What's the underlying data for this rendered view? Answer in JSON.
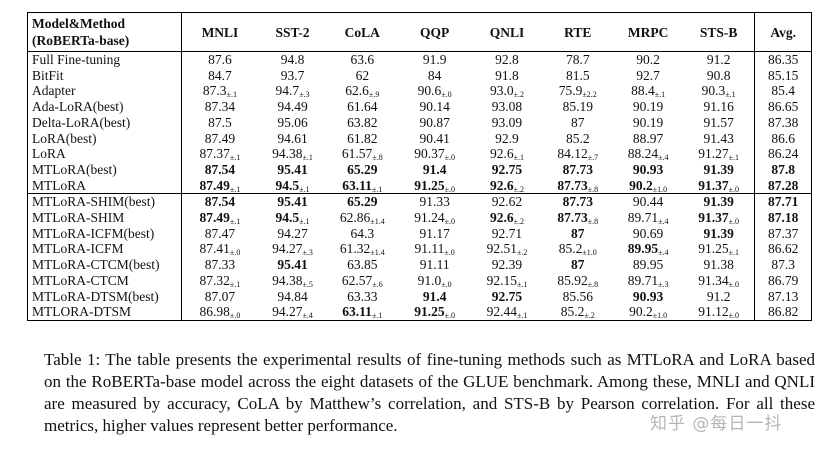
{
  "header": {
    "method_line1": "Model&Method",
    "method_line2": "(RoBERTa-base)",
    "columns": [
      "MNLI",
      "SST-2",
      "CoLA",
      "QQP",
      "QNLI",
      "RTE",
      "MRPC",
      "STS-B",
      "Avg."
    ]
  },
  "group1": [
    {
      "method": "Full Fine-tuning",
      "cells": [
        {
          "v": "87.6"
        },
        {
          "v": "94.8"
        },
        {
          "v": "63.6"
        },
        {
          "v": "91.9"
        },
        {
          "v": "92.8"
        },
        {
          "v": "78.7"
        },
        {
          "v": "90.2"
        },
        {
          "v": "91.2"
        },
        {
          "v": "86.35"
        }
      ]
    },
    {
      "method": "BitFit",
      "cells": [
        {
          "v": "84.7"
        },
        {
          "v": "93.7"
        },
        {
          "v": "62"
        },
        {
          "v": "84"
        },
        {
          "v": "91.8"
        },
        {
          "v": "81.5"
        },
        {
          "v": "92.7"
        },
        {
          "v": "90.8"
        },
        {
          "v": "85.15"
        }
      ]
    },
    {
      "method": "Adapter",
      "cells": [
        {
          "v": "87.3",
          "s": "±.1"
        },
        {
          "v": "94.7",
          "s": "±.3"
        },
        {
          "v": "62.6",
          "s": "±.9"
        },
        {
          "v": "90.6",
          "s": "±.0"
        },
        {
          "v": "93.0",
          "s": "±.2"
        },
        {
          "v": "75.9",
          "s": "±2.2"
        },
        {
          "v": "88.4",
          "s": "±.1"
        },
        {
          "v": "90.3",
          "s": "±.1"
        },
        {
          "v": "85.4"
        }
      ]
    },
    {
      "method": "Ada-LoRA(best)",
      "cells": [
        {
          "v": "87.34"
        },
        {
          "v": "94.49"
        },
        {
          "v": "61.64"
        },
        {
          "v": "90.14"
        },
        {
          "v": "93.08"
        },
        {
          "v": "85.19"
        },
        {
          "v": "90.19"
        },
        {
          "v": "91.16"
        },
        {
          "v": "86.65"
        }
      ]
    },
    {
      "method": "Delta-LoRA(best)",
      "cells": [
        {
          "v": "87.5"
        },
        {
          "v": "95.06"
        },
        {
          "v": "63.82"
        },
        {
          "v": "90.87"
        },
        {
          "v": "93.09"
        },
        {
          "v": "87"
        },
        {
          "v": "90.19"
        },
        {
          "v": "91.57"
        },
        {
          "v": "87.38"
        }
      ]
    },
    {
      "method": "LoRA(best)",
      "cells": [
        {
          "v": "87.49"
        },
        {
          "v": "94.61"
        },
        {
          "v": "61.82"
        },
        {
          "v": "90.41"
        },
        {
          "v": "92.9"
        },
        {
          "v": "85.2"
        },
        {
          "v": "88.97"
        },
        {
          "v": "91.43"
        },
        {
          "v": "86.6"
        }
      ]
    },
    {
      "method": "LoRA",
      "cells": [
        {
          "v": "87.37",
          "s": "±.1"
        },
        {
          "v": "94.38",
          "s": "±.1"
        },
        {
          "v": "61.57",
          "s": "±.8"
        },
        {
          "v": "90.37",
          "s": "±.0"
        },
        {
          "v": "92.6",
          "s": "±.1"
        },
        {
          "v": "84.12",
          "s": "±.7"
        },
        {
          "v": "88.24",
          "s": "±.4"
        },
        {
          "v": "91.27",
          "s": "±.1"
        },
        {
          "v": "86.24"
        }
      ]
    },
    {
      "method": "MTLoRA(best)",
      "cells": [
        {
          "v": "87.54",
          "b": true
        },
        {
          "v": "95.41",
          "b": true
        },
        {
          "v": "65.29",
          "b": true
        },
        {
          "v": "91.4",
          "b": true
        },
        {
          "v": "92.75",
          "b": true
        },
        {
          "v": "87.73",
          "b": true
        },
        {
          "v": "90.93",
          "b": true
        },
        {
          "v": "91.39",
          "b": true
        },
        {
          "v": "87.8",
          "b": true
        }
      ]
    },
    {
      "method": "MTLoRA",
      "cells": [
        {
          "v": "87.49",
          "s": "±.1",
          "b": true
        },
        {
          "v": "94.5",
          "s": "±.1",
          "b": true
        },
        {
          "v": "63.11",
          "s": "±.1",
          "b": true
        },
        {
          "v": "91.25",
          "s": "±.0",
          "b": true
        },
        {
          "v": "92.6",
          "s": "±.2",
          "b": true
        },
        {
          "v": "87.73",
          "s": "±.8",
          "b": true
        },
        {
          "v": "90.2",
          "s": "±1.0",
          "b": true
        },
        {
          "v": "91.37",
          "s": "±.0",
          "b": true
        },
        {
          "v": "87.28",
          "b": true
        }
      ]
    }
  ],
  "group2": [
    {
      "method": "MTLoRA-SHIM(best)",
      "cells": [
        {
          "v": "87.54",
          "b": true
        },
        {
          "v": "95.41",
          "b": true
        },
        {
          "v": "65.29",
          "b": true
        },
        {
          "v": "91.33"
        },
        {
          "v": "92.62"
        },
        {
          "v": "87.73",
          "b": true
        },
        {
          "v": "90.44"
        },
        {
          "v": "91.39",
          "b": true
        },
        {
          "v": "87.71",
          "b": true
        }
      ]
    },
    {
      "method": "MTLoRA-SHIM",
      "cells": [
        {
          "v": "87.49",
          "s": "±.1",
          "b": true
        },
        {
          "v": "94.5",
          "s": "±.1",
          "b": true
        },
        {
          "v": "62.86",
          "s": "±1.4"
        },
        {
          "v": "91.24",
          "s": "±.0"
        },
        {
          "v": "92.6",
          "s": "±.2",
          "b": true
        },
        {
          "v": "87.73",
          "s": "±.8",
          "b": true
        },
        {
          "v": "89.71",
          "s": "±.4"
        },
        {
          "v": "91.37",
          "s": "±.0",
          "b": true
        },
        {
          "v": "87.18",
          "b": true
        }
      ]
    },
    {
      "method": "MTLoRA-ICFM(best)",
      "cells": [
        {
          "v": "87.47"
        },
        {
          "v": "94.27"
        },
        {
          "v": "64.3"
        },
        {
          "v": "91.17"
        },
        {
          "v": "92.71"
        },
        {
          "v": "87",
          "b": true
        },
        {
          "v": "90.69"
        },
        {
          "v": "91.39",
          "b": true
        },
        {
          "v": "87.37"
        }
      ]
    },
    {
      "method": "MTLoRA-ICFM",
      "cells": [
        {
          "v": "87.41",
          "s": "±.0"
        },
        {
          "v": "94.27",
          "s": "±.3"
        },
        {
          "v": "61.32",
          "s": "±1.4"
        },
        {
          "v": "91.11",
          "s": "±.0"
        },
        {
          "v": "92.51",
          "s": "±.2"
        },
        {
          "v": "85.2",
          "s": "±1.0"
        },
        {
          "v": "89.95",
          "s": "±.4",
          "b": true
        },
        {
          "v": "91.25",
          "s": "±.1"
        },
        {
          "v": "86.62"
        }
      ]
    },
    {
      "method": "MTLoRA-CTCM(best)",
      "cells": [
        {
          "v": "87.33"
        },
        {
          "v": "95.41",
          "b": true
        },
        {
          "v": "63.85"
        },
        {
          "v": "91.11"
        },
        {
          "v": "92.39"
        },
        {
          "v": "87",
          "b": true
        },
        {
          "v": "89.95"
        },
        {
          "v": "91.38"
        },
        {
          "v": "87.3"
        }
      ]
    },
    {
      "method": "MTLoRA-CTCM",
      "cells": [
        {
          "v": "87.32",
          "s": "±.1"
        },
        {
          "v": "94.38",
          "s": "±.5"
        },
        {
          "v": "62.57",
          "s": "±.6"
        },
        {
          "v": "91.0",
          "s": "±.0"
        },
        {
          "v": "92.15",
          "s": "±.1"
        },
        {
          "v": "85.92",
          "s": "±.8"
        },
        {
          "v": "89.71",
          "s": "±.3"
        },
        {
          "v": "91.34",
          "s": "±.0"
        },
        {
          "v": "86.79"
        }
      ]
    },
    {
      "method": "MTLoRA-DTSM(best)",
      "cells": [
        {
          "v": "87.07"
        },
        {
          "v": "94.84"
        },
        {
          "v": "63.33"
        },
        {
          "v": "91.4",
          "b": true
        },
        {
          "v": "92.75",
          "b": true
        },
        {
          "v": "85.56"
        },
        {
          "v": "90.93",
          "b": true
        },
        {
          "v": "91.2"
        },
        {
          "v": "87.13"
        }
      ]
    },
    {
      "method": "MTLORA-DTSM",
      "cells": [
        {
          "v": "86.98",
          "s": "±.0"
        },
        {
          "v": "94.27",
          "s": "±.4"
        },
        {
          "v": "63.11",
          "s": "±.1",
          "b": true
        },
        {
          "v": "91.25",
          "s": "±.0",
          "b": true
        },
        {
          "v": "92.44",
          "s": "±.1"
        },
        {
          "v": "85.2",
          "s": "±.2"
        },
        {
          "v": "90.2",
          "s": "±1.0"
        },
        {
          "v": "91.12",
          "s": "±.0"
        },
        {
          "v": "86.82"
        }
      ]
    }
  ],
  "caption": "Table 1: The table presents the experimental results of fine-tuning methods such as MTLoRA and LoRA based on the RoBERTa-base model across the eight datasets of the GLUE benchmark. Among these, MNLI and QNLI are measured by accuracy, CoLA by Matthew’s correlation, and STS-B by Pearson correlation. For all these metrics, higher values represent better performance.",
  "watermark": "知乎 @每日一抖"
}
